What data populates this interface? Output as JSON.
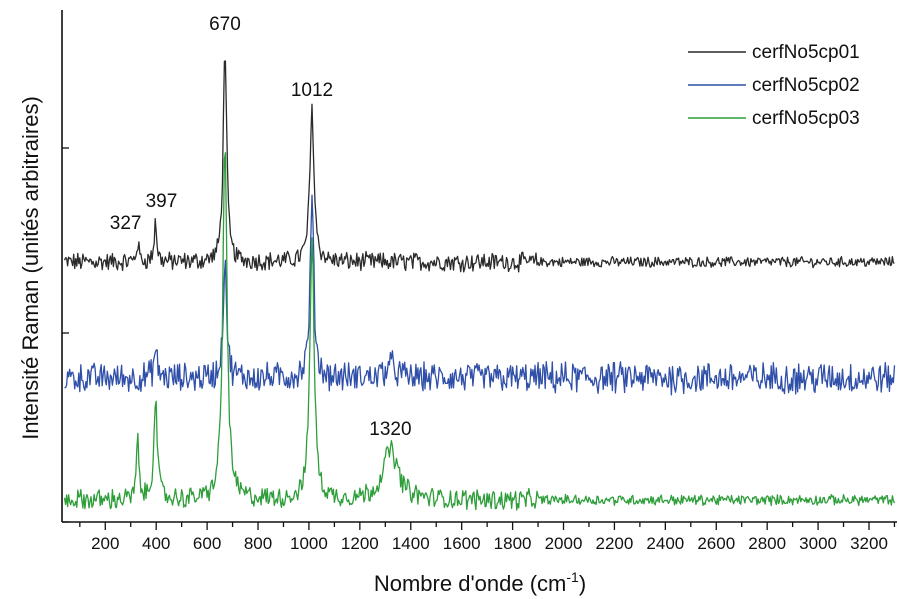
{
  "chart_data": {
    "type": "line",
    "xlabel": "Nombre d'onde (cm",
    "xlabel_sup": "-1",
    "xlabel_end": ")",
    "ylabel": "Intensité Raman (unités arbitraires)",
    "xlim": [
      30,
      3310
    ],
    "x_ticks": [
      200,
      400,
      600,
      800,
      1000,
      1200,
      1400,
      1600,
      1800,
      2000,
      2200,
      2400,
      2600,
      2800,
      3000,
      3200
    ],
    "y_tick_count": 3,
    "legend_position": "top-right",
    "grid": false,
    "series": [
      {
        "name": "cerfNo5cp01",
        "color": "#2a2a2a",
        "offset": 2.0,
        "noise": 0.045,
        "tail_noise": 0.025,
        "peaks": [
          [
            327,
            0.1,
            6
          ],
          [
            397,
            0.22,
            6
          ],
          [
            670,
            1.18,
            8
          ],
          [
            1012,
            0.82,
            10
          ]
        ]
      },
      {
        "name": "cerfNo5cp02",
        "color": "#2f4fa8",
        "offset": 1.0,
        "noise": 0.06,
        "tail_noise": 0.065,
        "peaks": [
          [
            397,
            0.12,
            8
          ],
          [
            670,
            0.55,
            8
          ],
          [
            1012,
            0.8,
            9
          ],
          [
            1320,
            0.06,
            25
          ]
        ]
      },
      {
        "name": "cerfNo5cp03",
        "color": "#2e9e3a",
        "offset": 0.0,
        "noise": 0.04,
        "tail_noise": 0.02,
        "peaks": [
          [
            327,
            0.25,
            6
          ],
          [
            397,
            0.45,
            8
          ],
          [
            670,
            1.55,
            10
          ],
          [
            1012,
            1.15,
            10
          ],
          [
            1320,
            0.22,
            35
          ]
        ]
      }
    ],
    "annotations": [
      {
        "text": "327",
        "x": 327,
        "series": 0
      },
      {
        "text": "397",
        "x": 397,
        "series": 0
      },
      {
        "text": "670",
        "x": 670,
        "series": 0
      },
      {
        "text": "1012",
        "x": 1012,
        "series": 0
      },
      {
        "text": "1320",
        "x": 1320,
        "series": 2
      }
    ]
  }
}
